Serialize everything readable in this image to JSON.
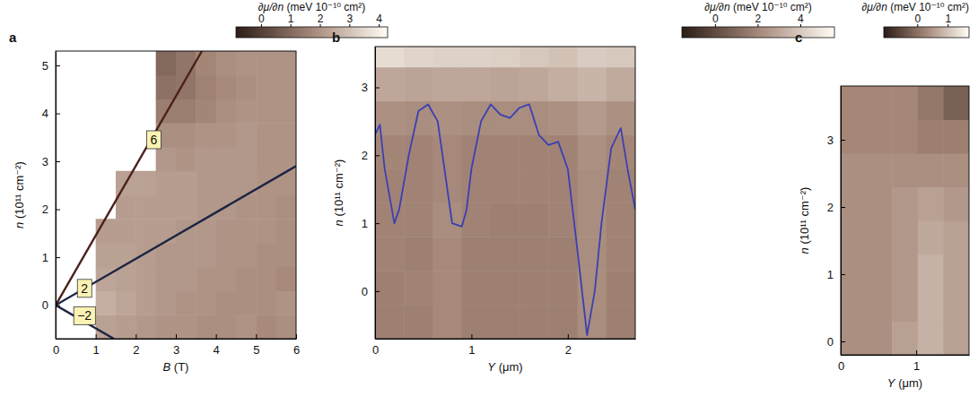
{
  "chart_data": [
    {
      "type": "heatmap",
      "panel_label": "a",
      "xlabel": "B (T)",
      "ylabel": "n (10¹¹ cm⁻²)",
      "xlim": [
        0,
        6
      ],
      "xticks": [
        0,
        1,
        2,
        3,
        4,
        5,
        6
      ],
      "ylim": [
        -0.7,
        5.3
      ],
      "yticks": [
        0,
        1,
        2,
        3,
        4,
        5
      ],
      "colorbar": {
        "title": "∂μ/∂n (meV 10⁻¹⁰ cm²)",
        "range": [
          -0.85,
          4.3
        ],
        "ticks": [
          0,
          1,
          2,
          3,
          4
        ],
        "colors": [
          "#2a1c16",
          "#a58778",
          "#fffdf5"
        ]
      },
      "cells": {
        "x": [
          0,
          0.5,
          1,
          1.5,
          2,
          2.5,
          3,
          3.5,
          4,
          4.5,
          5,
          5.5,
          6
        ],
        "y": [
          -0.7,
          -0.2,
          0.3,
          0.8,
          1.3,
          1.8,
          2.3,
          2.8,
          3.3,
          3.8,
          4.3,
          4.8,
          5.3
        ],
        "values": [
          [
            null,
            null,
            2.3,
            2.2,
            2.1,
            2.0,
            2.0,
            1.9,
            1.9,
            2.0,
            1.8,
            1.9
          ],
          [
            null,
            null,
            2.6,
            2.4,
            2.2,
            2.1,
            2.0,
            2.0,
            1.9,
            1.9,
            1.9,
            2.0
          ],
          [
            null,
            null,
            2.4,
            2.3,
            2.2,
            2.1,
            2.1,
            2.0,
            2.0,
            1.9,
            1.9,
            1.8
          ],
          [
            null,
            null,
            2.3,
            2.3,
            2.2,
            2.1,
            2.1,
            2.1,
            2.0,
            2.0,
            1.9,
            1.9
          ],
          [
            null,
            null,
            2.2,
            2.2,
            2.2,
            2.2,
            2.1,
            2.1,
            2.0,
            2.0,
            2.0,
            1.9
          ],
          [
            null,
            null,
            null,
            2.2,
            2.2,
            2.2,
            2.2,
            2.1,
            2.1,
            2.0,
            2.0,
            1.9
          ],
          [
            null,
            null,
            null,
            2.3,
            2.3,
            2.2,
            2.2,
            2.1,
            2.1,
            2.1,
            2.0,
            2.0
          ],
          [
            null,
            null,
            null,
            null,
            null,
            2.1,
            2.0,
            2.1,
            2.1,
            2.1,
            2.0,
            2.0
          ],
          [
            null,
            null,
            null,
            null,
            null,
            1.9,
            1.9,
            2.0,
            2.0,
            2.1,
            2.0,
            2.0
          ],
          [
            null,
            null,
            null,
            null,
            null,
            1.5,
            1.5,
            1.7,
            1.9,
            2.0,
            2.0,
            2.0
          ],
          [
            null,
            null,
            null,
            null,
            null,
            1.2,
            1.3,
            1.6,
            1.8,
            1.9,
            2.0,
            2.0
          ],
          [
            null,
            null,
            null,
            null,
            null,
            1.0,
            1.3,
            1.7,
            1.9,
            2.0,
            2.0,
            2.0
          ]
        ]
      },
      "series": [
        {
          "type": "line",
          "x": [
            0,
            3.65
          ],
          "values": [
            0,
            5.3
          ],
          "color": "#4b2119",
          "label": "6",
          "label_x": 2.45,
          "label_y": 3.45
        },
        {
          "type": "line",
          "x": [
            0,
            6
          ],
          "values": [
            0,
            2.9
          ],
          "color": "#1c2442",
          "label": "2",
          "label_x": 0.72,
          "label_y": 0.35
        },
        {
          "type": "line",
          "x": [
            0,
            1.45
          ],
          "values": [
            0,
            -0.7
          ],
          "color": "#1c2442",
          "label": "−2",
          "label_x": 0.72,
          "label_y": -0.22
        }
      ]
    },
    {
      "type": "heatmap",
      "panel_label": "b",
      "xlabel": "Y (μm)",
      "ylabel": "n (10¹¹ cm⁻²)",
      "xlim": [
        0,
        2.7
      ],
      "xticks": [
        0,
        1,
        2
      ],
      "ylim": [
        -0.7,
        3.6
      ],
      "yticks": [
        0,
        1,
        2,
        3
      ],
      "colorbar": {
        "title": "∂μ/∂n (meV 10⁻¹⁰ cm²)",
        "range": [
          -1.55,
          5.6
        ],
        "ticks": [
          0,
          2,
          4
        ],
        "colors": [
          "#2a1c16",
          "#a58778",
          "#fffdf5"
        ]
      },
      "cells": {
        "x": [
          0,
          0.3,
          0.6,
          0.9,
          1.2,
          1.5,
          1.8,
          2.1,
          2.4,
          2.7
        ],
        "y": [
          -0.7,
          -0.2,
          0.3,
          0.8,
          1.3,
          1.8,
          2.3,
          2.8,
          3.3,
          3.6
        ],
        "values": [
          [
            1.8,
            1.8,
            2.1,
            1.8,
            1.8,
            1.8,
            1.8,
            2.2,
            1.8
          ],
          [
            1.8,
            1.9,
            2.1,
            1.8,
            1.8,
            1.8,
            1.8,
            2.2,
            1.8
          ],
          [
            1.9,
            1.8,
            2.1,
            1.8,
            1.8,
            1.8,
            1.8,
            2.2,
            1.9
          ],
          [
            1.9,
            1.9,
            2.2,
            1.9,
            1.8,
            1.8,
            1.9,
            2.2,
            1.9
          ],
          [
            1.9,
            1.9,
            2.1,
            1.9,
            1.9,
            1.9,
            1.9,
            2.2,
            1.9
          ],
          [
            2.0,
            1.9,
            2.1,
            1.9,
            1.9,
            1.9,
            1.9,
            2.3,
            2.0
          ],
          [
            2.3,
            2.2,
            2.3,
            2.2,
            2.2,
            2.2,
            2.3,
            2.6,
            2.3
          ],
          [
            3.0,
            2.9,
            3.0,
            3.0,
            2.9,
            3.0,
            3.2,
            3.4,
            3.1
          ],
          [
            4.6,
            4.4,
            4.3,
            4.3,
            4.2,
            4.0,
            3.8,
            4.1,
            4.0
          ]
        ]
      },
      "series": [
        {
          "type": "line",
          "color": "#3b3fb4",
          "x": [
            0,
            0.05,
            0.1,
            0.2,
            0.25,
            0.35,
            0.45,
            0.55,
            0.65,
            0.72,
            0.8,
            0.9,
            0.95,
            1.0,
            1.1,
            1.2,
            1.3,
            1.4,
            1.5,
            1.6,
            1.7,
            1.8,
            1.9,
            2.0,
            2.1,
            2.2,
            2.28,
            2.35,
            2.45,
            2.55,
            2.62,
            2.7
          ],
          "values": [
            2.3,
            2.45,
            1.8,
            1.0,
            1.2,
            2.0,
            2.65,
            2.75,
            2.5,
            1.8,
            1.0,
            0.95,
            1.2,
            1.8,
            2.5,
            2.75,
            2.6,
            2.55,
            2.7,
            2.75,
            2.3,
            2.15,
            2.2,
            1.8,
            0.6,
            -0.65,
            0.0,
            1.0,
            2.1,
            2.4,
            1.8,
            1.2
          ]
        }
      ]
    },
    {
      "type": "heatmap",
      "panel_label": "c",
      "xlabel": "Y (μm)",
      "ylabel": "n (10¹¹ cm⁻²)",
      "xlim": [
        0,
        1.7
      ],
      "xticks": [
        0,
        1
      ],
      "ylim": [
        -0.2,
        3.8
      ],
      "yticks": [
        0,
        1,
        2,
        3
      ],
      "colorbar": {
        "title": "∂μ/∂n (meV 10⁻¹⁰ cm²)",
        "range": [
          -1.1,
          1.7
        ],
        "ticks": [
          0,
          1
        ],
        "colors": [
          "#2a1c16",
          "#a58778",
          "#fffdf5"
        ]
      },
      "cells": {
        "x": [
          0,
          0.34,
          0.68,
          1.02,
          1.36,
          1.7
        ],
        "y": [
          -0.2,
          0.3,
          0.8,
          1.3,
          1.8,
          2.3,
          2.8,
          3.3,
          3.8
        ],
        "values": [
          [
            0.4,
            0.4,
            0.6,
            0.8,
            0.6
          ],
          [
            0.4,
            0.4,
            0.5,
            0.8,
            0.6
          ],
          [
            0.4,
            0.4,
            0.5,
            0.8,
            0.6
          ],
          [
            0.4,
            0.4,
            0.5,
            0.7,
            0.6
          ],
          [
            0.4,
            0.4,
            0.5,
            0.6,
            0.5
          ],
          [
            0.4,
            0.4,
            0.4,
            0.4,
            0.4
          ],
          [
            0.3,
            0.3,
            0.3,
            0.2,
            0.2
          ],
          [
            0.3,
            0.3,
            0.3,
            0.1,
            -0.2
          ]
        ]
      }
    }
  ]
}
